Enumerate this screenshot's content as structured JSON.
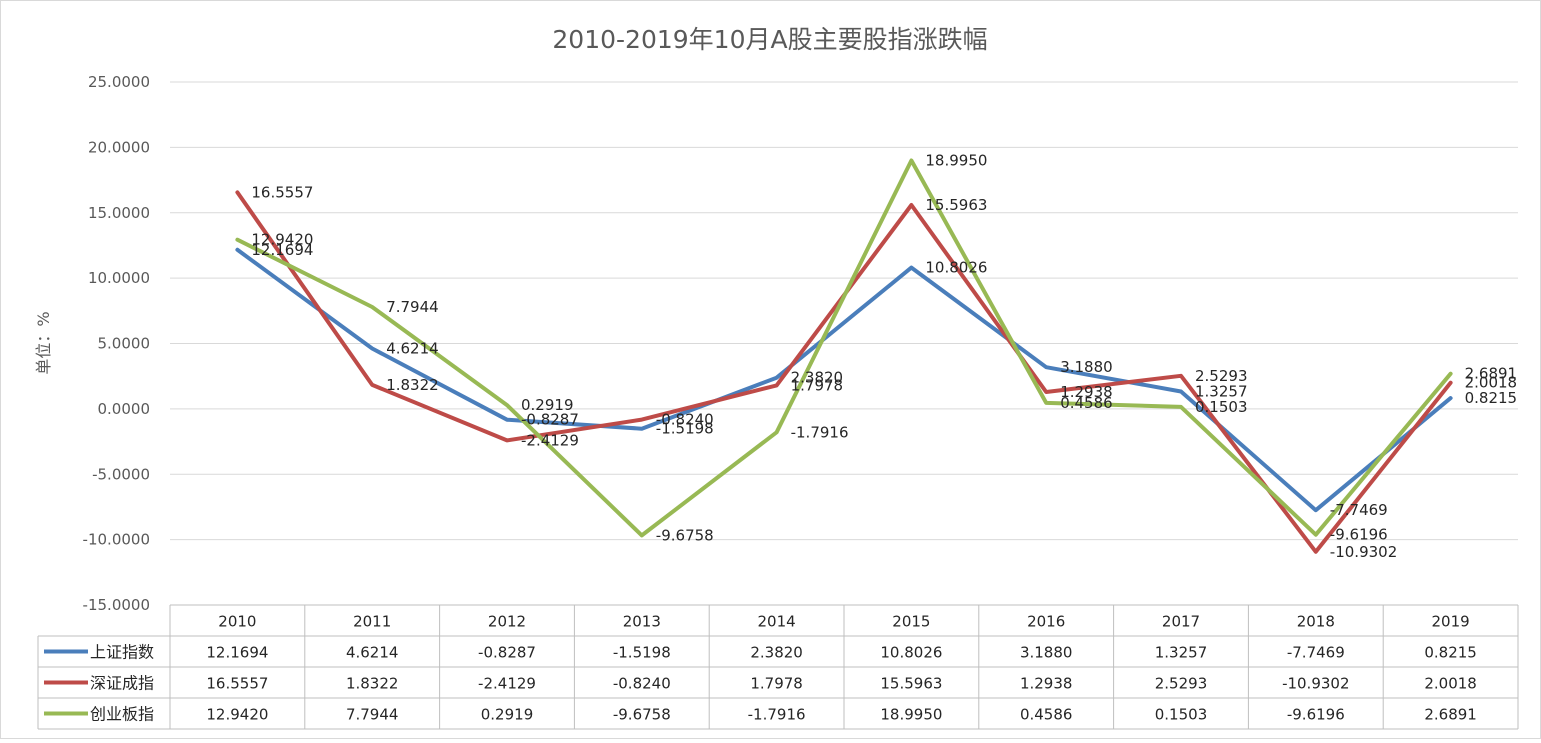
{
  "chart_data": {
    "type": "line",
    "title": "2010-2019年10月A股主要股指涨跌幅",
    "ylabel": "单位：%",
    "xlabel": "",
    "ylim": [
      -15,
      25
    ],
    "yticks": [
      25,
      20,
      15,
      10,
      5,
      0,
      -5,
      -10,
      -15
    ],
    "ytick_labels": [
      "25.0000",
      "20.0000",
      "15.0000",
      "10.0000",
      "5.0000",
      "0.0000",
      "-5.0000",
      "-10.0000",
      "-15.0000"
    ],
    "grid": true,
    "categories": [
      "2010",
      "2011",
      "2012",
      "2013",
      "2014",
      "2015",
      "2016",
      "2017",
      "2018",
      "2019"
    ],
    "series": [
      {
        "name": "上证指数",
        "color": "#4a7ebb",
        "values": [
          12.1694,
          4.6214,
          -0.8287,
          -1.5198,
          2.382,
          10.8026,
          3.188,
          1.3257,
          -7.7469,
          0.8215
        ],
        "labels": [
          "12.1694",
          "4.6214",
          "-0.8287",
          "-1.5198",
          "2.3820",
          "10.8026",
          "3.1880",
          "1.3257",
          "-7.7469",
          "0.8215"
        ]
      },
      {
        "name": "深证成指",
        "color": "#be4b48",
        "values": [
          16.5557,
          1.8322,
          -2.4129,
          -0.824,
          1.7978,
          15.5963,
          1.2938,
          2.5293,
          -10.9302,
          2.0018
        ],
        "labels": [
          "16.5557",
          "1.8322",
          "-2.4129",
          "-0.8240",
          "1.7978",
          "15.5963",
          "1.2938",
          "2.5293",
          "-10.9302",
          "2.0018"
        ]
      },
      {
        "name": "创业板指",
        "color": "#98b954",
        "values": [
          12.942,
          7.7944,
          0.2919,
          -9.6758,
          -1.7916,
          18.995,
          0.4586,
          0.1503,
          -9.6196,
          2.6891
        ],
        "labels": [
          "12.9420",
          "7.7944",
          "0.2919",
          "-9.6758",
          "-1.7916",
          "18.9950",
          "0.4586",
          "0.1503",
          "-9.6196",
          "2.6891"
        ]
      }
    ]
  }
}
